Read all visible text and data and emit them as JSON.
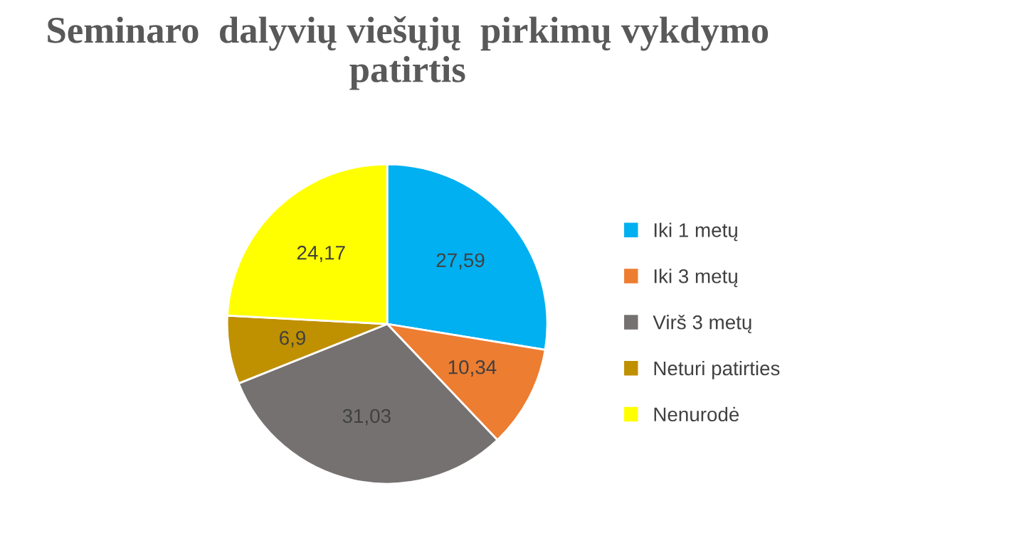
{
  "chart_data": {
    "type": "pie",
    "title": "Seminaro  dalyvių viešųjų  pirkimų vykdymo patirtis",
    "categories": [
      "Iki 1 metų",
      "Iki 3 metų",
      "Virš 3 metų",
      "Neturi patirties",
      "Nenurodė"
    ],
    "values": [
      27.59,
      10.34,
      31.03,
      6.9,
      24.17
    ],
    "colors": [
      "#00b0f0",
      "#ed7d31",
      "#767171",
      "#bf9000",
      "#ffff00"
    ],
    "value_labels": [
      "27,59",
      "10,34",
      "31,03",
      "6,9",
      "24,17"
    ],
    "legend": "right"
  }
}
